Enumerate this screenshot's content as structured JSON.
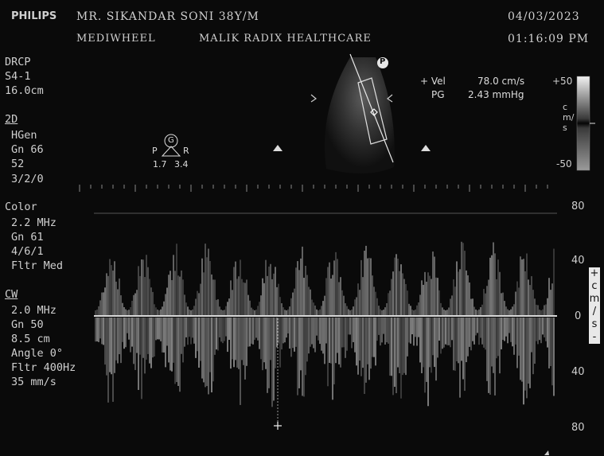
{
  "header": {
    "brand": "PHILIPS",
    "patient": "MR. SIKANDAR SONI 38Y/M",
    "date": "04/03/2023",
    "time": "01:16:09 PM",
    "facility1": "MEDIWHEEL",
    "facility2": "MALIK RADIX HEALTHCARE"
  },
  "probe": {
    "preset": "DRCP",
    "transducer": "S4-1",
    "depth": "16.0cm"
  },
  "mode_2d": {
    "title": "2D",
    "lines": [
      "HGen",
      "Gn 66",
      "52",
      "3/2/0"
    ]
  },
  "mode_color": {
    "title": "Color",
    "lines": [
      "2.2 MHz",
      "Gn 61",
      "4/6/1",
      "Fltr Med"
    ]
  },
  "mode_cw": {
    "title": "CW",
    "lines": [
      "2.0 MHz",
      "Gn 50",
      "8.5 cm",
      "Angle 0°",
      "Fltr 400Hz",
      "35 mm/s"
    ]
  },
  "measurement": {
    "vel_label": "+ Vel",
    "vel_value": "78.0 cm/s",
    "pg_label": "PG",
    "pg_value": "2.43 mmHg"
  },
  "color_bar": {
    "top": "+50",
    "bottom": "-50",
    "unit": "cm/s"
  },
  "orientation": {
    "marker": "P",
    "gmarker": "G",
    "p_label": "P",
    "r_label": "R",
    "v1": "1.7",
    "v2": "3.4"
  },
  "velocity_scale": {
    "ticks": [
      "80",
      "40",
      "0",
      "40",
      "80"
    ],
    "unit": [
      "+",
      "c",
      "m",
      "/",
      "s",
      "-"
    ]
  }
}
